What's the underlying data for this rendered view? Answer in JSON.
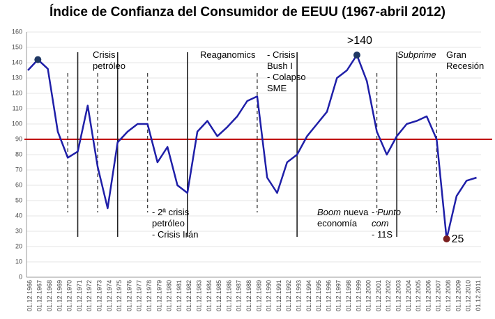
{
  "chart_data": {
    "type": "line",
    "title": "Índice de Confianza del Consumidor de EEUU (1967-abril 2012)",
    "categories": [
      "01.12.1966",
      "01.12.1967",
      "01.12.1968",
      "01.12.1969",
      "01.12.1970",
      "01.12.1971",
      "01.12.1972",
      "01.12.1973",
      "01.12.1974",
      "01.12.1975",
      "01.12.1976",
      "01.12.1977",
      "01.12.1978",
      "01.12.1979",
      "01.12.1980",
      "01.12.1981",
      "01.12.1982",
      "01.12.1983",
      "01.12.1984",
      "01.12.1985",
      "01.12.1986",
      "01.12.1987",
      "01.12.1988",
      "01.12.1989",
      "01.12.1990",
      "01.12.1991",
      "01.12.1992",
      "01.12.1993",
      "01.12.1994",
      "01.12.1995",
      "01.12.1996",
      "01.12.1997",
      "01.12.1998",
      "01.12.1999",
      "01.12.2000",
      "01.12.2001",
      "01.12.2002",
      "01.12.2003",
      "01.12.2004",
      "01.12.2005",
      "01.12.2006",
      "01.12.2007",
      "01.12.2008",
      "01.12.2009",
      "01.12.2010",
      "01.12.2011"
    ],
    "values": [
      135,
      142,
      136,
      95,
      78,
      82,
      112,
      72,
      45,
      88,
      95,
      100,
      100,
      75,
      85,
      60,
      55,
      95,
      102,
      92,
      98,
      105,
      115,
      118,
      65,
      55,
      75,
      80,
      92,
      100,
      108,
      130,
      135,
      145,
      128,
      95,
      80,
      92,
      100,
      102,
      105,
      90,
      25,
      53,
      63,
      65
    ],
    "color": "#1f1fa8",
    "ylim": [
      0,
      160
    ],
    "yticks": [
      0,
      10,
      20,
      30,
      40,
      50,
      60,
      70,
      80,
      90,
      100,
      110,
      120,
      130,
      140,
      150,
      160
    ],
    "grid": true,
    "reference_line": {
      "value": 90,
      "color": "#c00000"
    },
    "markers": [
      {
        "x": "01.12.1967",
        "color": "#1f3864"
      },
      {
        "x": "01.12.1999",
        "color": "#1f3864",
        "label": ">140"
      },
      {
        "x": "01.12.2008",
        "color": "#7b1f1f"
      }
    ],
    "event_lines": [
      {
        "x": "01.12.1970",
        "style": "dashed"
      },
      {
        "x": "01.12.1971",
        "style": "solid"
      },
      {
        "x": "01.12.1973",
        "style": "dashed"
      },
      {
        "x": "01.12.1975",
        "style": "solid"
      },
      {
        "x": "01.12.1978",
        "style": "dashed"
      },
      {
        "x": "01.12.1982",
        "style": "solid"
      },
      {
        "x": "01.12.1989",
        "style": "dashed"
      },
      {
        "x": "01.12.1993",
        "style": "solid"
      },
      {
        "x": "01.12.2001",
        "style": "dashed"
      },
      {
        "x": "01.12.2003",
        "style": "solid"
      },
      {
        "x": "01.12.2007",
        "style": "dashed"
      }
    ],
    "annotations": [
      {
        "lines": [
          "Crisis",
          "petróleo"
        ]
      },
      {
        "lines": [
          "Reaganomics"
        ]
      },
      {
        "lines": [
          "- Crisis",
          "Bush I",
          "- Colapso",
          "SME"
        ]
      },
      {
        "lines": [
          "- 2ª crisis",
          "petróleo",
          "- Crisis Irán"
        ]
      },
      {
        "lines": [
          "Boom",
          "nueva",
          "economía"
        ]
      },
      {
        "lines": [
          "- ",
          "Punto",
          "com",
          "- 11S"
        ]
      },
      {
        "lines": [
          "Subprime"
        ]
      },
      {
        "lines": [
          "Gran",
          "Recesión"
        ]
      }
    ]
  }
}
